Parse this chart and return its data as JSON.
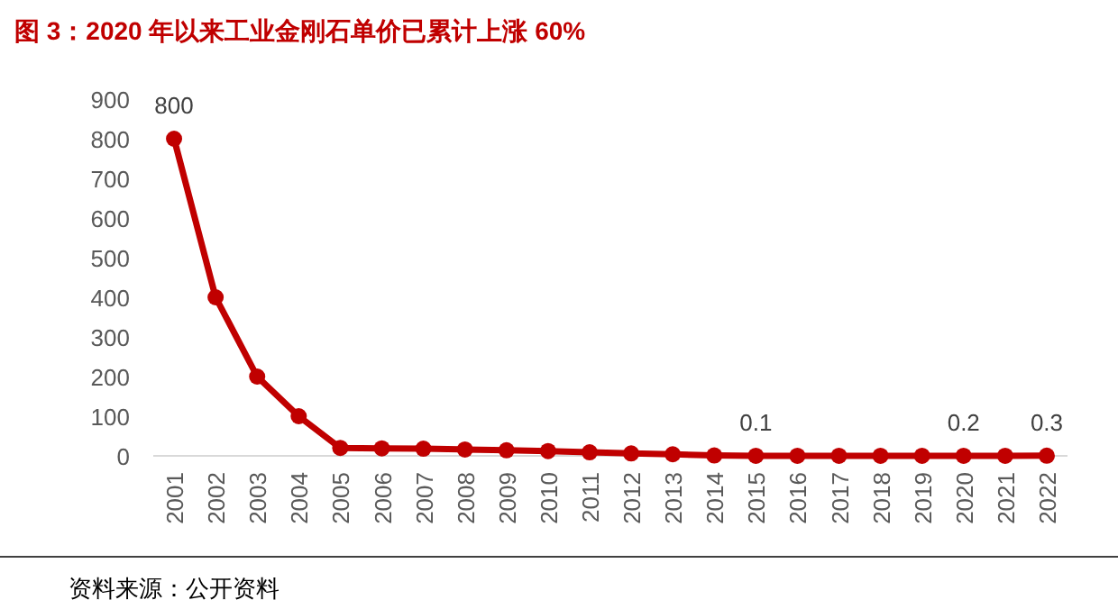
{
  "chart_data": {
    "type": "line",
    "title": "图 3：2020 年以来工业金刚石单价已累计上涨 60%",
    "categories": [
      "2001",
      "2002",
      "2003",
      "2004",
      "2005",
      "2006",
      "2007",
      "2008",
      "2009",
      "2010",
      "2011",
      "2012",
      "2013",
      "2014",
      "2015",
      "2016",
      "2017",
      "2018",
      "2019",
      "2020",
      "2021",
      "2022"
    ],
    "series": [
      {
        "color": "#c00000",
        "values": [
          800,
          400,
          200,
          100,
          20,
          19,
          18,
          16,
          14,
          12,
          9,
          6,
          4,
          1,
          0.1,
          0.1,
          0.1,
          0.1,
          0.1,
          0.2,
          0.2,
          0.3
        ],
        "value_labels": [
          "800",
          null,
          null,
          null,
          null,
          null,
          null,
          null,
          null,
          null,
          null,
          null,
          null,
          null,
          "0.1",
          null,
          null,
          null,
          null,
          "0.2",
          null,
          "0.3"
        ]
      }
    ],
    "ylim": [
      0,
      900
    ],
    "yticks": [
      0,
      100,
      200,
      300,
      400,
      500,
      600,
      700,
      800,
      900
    ],
    "marker": "circle",
    "line_style": "solid",
    "annotations": [
      "资料来源：公开资料"
    ]
  }
}
